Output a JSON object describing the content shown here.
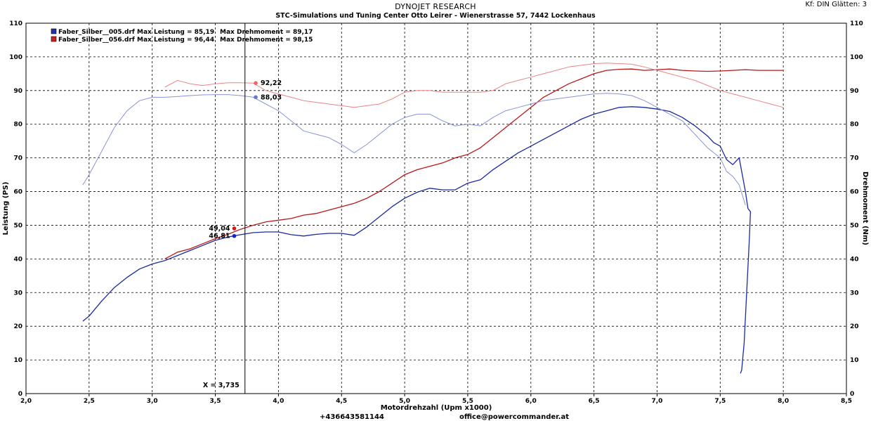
{
  "header": {
    "title": "DYNOJET RESEARCH",
    "subtitle": "STC-Simulations und Tuning Center Otto Leirer - Wienerstrasse 57, 7442 Lockenhaus",
    "settings": "Kf: DIN  Glätten: 3"
  },
  "footer": {
    "phone": "+436643581144",
    "email": "office@powercommander.at"
  },
  "chart_data": {
    "type": "line",
    "xlabel": "Motordrehzahl (Upm x1000)",
    "ylabel_left": "Leistung (PS)",
    "ylabel_right": "Drehmoment (Nm)",
    "xlim": [
      2.0,
      8.5
    ],
    "ylim": [
      0,
      110
    ],
    "xticks": [
      "2,0",
      "2,5",
      "3,0",
      "3,5",
      "4,0",
      "4,5",
      "5,0",
      "5,5",
      "6,0",
      "6,5",
      "7,0",
      "7,5",
      "8,0",
      "8,5"
    ],
    "yticks": [
      "0",
      "10",
      "20",
      "30",
      "40",
      "50",
      "60",
      "70",
      "80",
      "90",
      "100",
      "110"
    ],
    "grid": true,
    "legend_position": "top-left",
    "legend": [
      {
        "file": "Faber_Silber__005.drf",
        "leistung": "Max Leistung = 85,19",
        "drehmoment": "Max Drehmoment = 89,17",
        "color": "#2233aa"
      },
      {
        "file": "Faber_Silber__056.drf",
        "leistung": "Max Leistung = 96,44",
        "drehmoment": "Max Drehmoment = 98,15",
        "color": "#cc2222"
      }
    ],
    "cursor": {
      "x": 3.735,
      "label": "X = 3,735"
    },
    "markers": [
      {
        "label": "92,22",
        "x": 3.82,
        "y": 92.22,
        "color": "#ee6666"
      },
      {
        "label": "88,03",
        "x": 3.82,
        "y": 88.03,
        "color": "#6677dd"
      },
      {
        "label": "49,04",
        "x": 3.65,
        "y": 49.04,
        "color": "#dd1111"
      },
      {
        "label": "46,81",
        "x": 3.65,
        "y": 46.81,
        "color": "#1122cc"
      }
    ],
    "series": [
      {
        "id": "power-005",
        "color": "#1a2aa0",
        "width": 1.3,
        "x": [
          2.45,
          2.5,
          2.6,
          2.7,
          2.8,
          2.9,
          3.0,
          3.1,
          3.2,
          3.3,
          3.4,
          3.5,
          3.6,
          3.7,
          3.8,
          3.9,
          4.0,
          4.1,
          4.2,
          4.3,
          4.4,
          4.5,
          4.6,
          4.7,
          4.8,
          4.9,
          5.0,
          5.1,
          5.2,
          5.3,
          5.4,
          5.5,
          5.6,
          5.7,
          5.8,
          5.9,
          6.0,
          6.1,
          6.2,
          6.3,
          6.4,
          6.5,
          6.6,
          6.7,
          6.8,
          6.9,
          7.0,
          7.1,
          7.2,
          7.3,
          7.4,
          7.45,
          7.5,
          7.55,
          7.6,
          7.65,
          7.7,
          7.72,
          7.74,
          7.73,
          7.71,
          7.69,
          7.67,
          7.66
        ],
        "y": [
          21.5,
          23,
          27.5,
          31.5,
          34.5,
          37,
          38.5,
          39.5,
          41,
          42.5,
          44,
          45.5,
          46.5,
          47.2,
          47.8,
          48,
          48,
          47.2,
          46.8,
          47.3,
          47.6,
          47.6,
          47,
          49.5,
          52.5,
          55.5,
          58,
          59.8,
          61,
          60.5,
          60.5,
          62.5,
          63.5,
          66.5,
          69,
          71.5,
          73.5,
          75.5,
          77.5,
          79.5,
          81.5,
          83,
          84,
          85,
          85.2,
          85,
          84.5,
          83.8,
          82,
          79.5,
          76.5,
          74.5,
          73.5,
          69.5,
          68,
          70,
          60,
          55,
          54,
          45,
          30,
          15,
          7,
          6
        ]
      },
      {
        "id": "power-056",
        "color": "#b81818",
        "width": 1.3,
        "x": [
          3.1,
          3.2,
          3.3,
          3.4,
          3.5,
          3.6,
          3.7,
          3.8,
          3.9,
          4.0,
          4.1,
          4.2,
          4.3,
          4.4,
          4.5,
          4.6,
          4.7,
          4.8,
          4.9,
          5.0,
          5.1,
          5.2,
          5.3,
          5.4,
          5.5,
          5.6,
          5.7,
          5.8,
          5.9,
          6.0,
          6.1,
          6.2,
          6.3,
          6.4,
          6.5,
          6.6,
          6.7,
          6.8,
          6.9,
          7.0,
          7.1,
          7.2,
          7.3,
          7.4,
          7.5,
          7.6,
          7.7,
          7.8,
          7.9,
          8.0
        ],
        "y": [
          40,
          42,
          43,
          44.5,
          46,
          47.3,
          48.8,
          50,
          51,
          51.5,
          52,
          53,
          53.5,
          54.5,
          55.5,
          56.5,
          58,
          60,
          62.5,
          65,
          66.5,
          67.5,
          68.5,
          70,
          71,
          73,
          76,
          79,
          82,
          85,
          88,
          90,
          92,
          93.5,
          95,
          96,
          96.3,
          96.4,
          96,
          96.2,
          96.4,
          96,
          95.8,
          95.7,
          95.8,
          96,
          96.2,
          96,
          96,
          96
        ]
      },
      {
        "id": "torque-005",
        "color": "#8a93d8",
        "width": 1.0,
        "x": [
          2.45,
          2.5,
          2.6,
          2.7,
          2.8,
          2.9,
          3.0,
          3.1,
          3.2,
          3.3,
          3.4,
          3.5,
          3.6,
          3.7,
          3.8,
          3.9,
          4.0,
          4.1,
          4.2,
          4.3,
          4.4,
          4.5,
          4.6,
          4.7,
          4.8,
          4.9,
          5.0,
          5.1,
          5.2,
          5.3,
          5.4,
          5.5,
          5.6,
          5.7,
          5.8,
          5.9,
          6.0,
          6.1,
          6.2,
          6.3,
          6.4,
          6.5,
          6.6,
          6.7,
          6.8,
          6.9,
          7.0,
          7.1,
          7.2,
          7.3,
          7.4,
          7.5,
          7.55,
          7.6,
          7.65,
          7.7
        ],
        "y": [
          62,
          65,
          72,
          79,
          84,
          87,
          88,
          88,
          88.2,
          88.5,
          88.7,
          88.8,
          88.8,
          88.5,
          88.03,
          86,
          84,
          81,
          78,
          77,
          76,
          74,
          71.5,
          74,
          77,
          80,
          82,
          83,
          83,
          81,
          79.5,
          80,
          79.5,
          82,
          84,
          85,
          86,
          87,
          87.5,
          88,
          88.5,
          89,
          89.2,
          89,
          88.5,
          87,
          85,
          83,
          81,
          77,
          73,
          70,
          66,
          64.5,
          62,
          56
        ]
      },
      {
        "id": "torque-056",
        "color": "#ea8585",
        "width": 1.0,
        "x": [
          3.1,
          3.2,
          3.3,
          3.4,
          3.5,
          3.6,
          3.7,
          3.8,
          3.9,
          4.0,
          4.1,
          4.2,
          4.3,
          4.4,
          4.5,
          4.6,
          4.7,
          4.8,
          4.9,
          5.0,
          5.1,
          5.2,
          5.3,
          5.4,
          5.5,
          5.6,
          5.7,
          5.8,
          5.9,
          6.0,
          6.1,
          6.2,
          6.3,
          6.4,
          6.5,
          6.6,
          6.7,
          6.8,
          6.9,
          7.0,
          7.1,
          7.2,
          7.3,
          7.4,
          7.5,
          7.6,
          7.7,
          7.8,
          7.9,
          8.0
        ],
        "y": [
          91,
          93,
          92,
          91.5,
          92,
          92.3,
          92.3,
          92.22,
          90,
          89,
          88,
          87,
          86.5,
          86,
          85.5,
          85,
          85.5,
          86,
          87.5,
          89.5,
          90,
          90,
          89.5,
          89.5,
          89.5,
          89.5,
          90,
          92,
          93,
          94,
          95,
          96,
          97,
          97.5,
          98,
          98.15,
          98,
          97.8,
          97,
          96,
          95,
          94,
          93,
          91.5,
          90,
          89,
          88,
          87,
          86,
          85
        ]
      }
    ]
  }
}
